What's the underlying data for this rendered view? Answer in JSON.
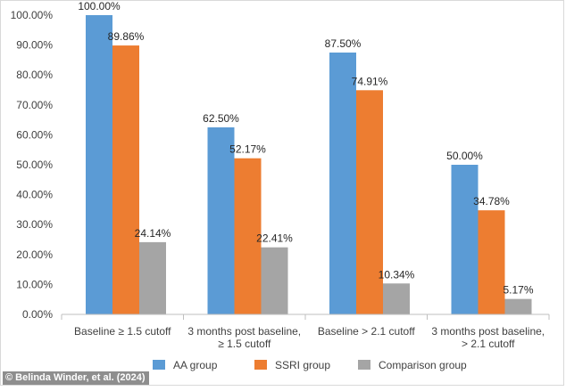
{
  "credit": "© Belinda Winder, et al. (2024)",
  "chart_data": {
    "type": "bar",
    "categories": [
      [
        "Baseline ≥ 1.5 cutoff"
      ],
      [
        "3 months post baseline,",
        "≥ 1.5 cutoff"
      ],
      [
        "Baseline > 2.1 cutoff"
      ],
      [
        "3 months post baseline,",
        "> 2.1 cutoff"
      ]
    ],
    "series": [
      {
        "name": "AA group",
        "color": "#5b9bd5",
        "values": [
          100.0,
          62.5,
          87.5,
          50.0
        ],
        "labels": [
          "100.00%",
          "62.50%",
          "87.50%",
          "50.00%"
        ]
      },
      {
        "name": "SSRI group",
        "color": "#ed7d31",
        "values": [
          89.86,
          52.17,
          74.91,
          34.78
        ],
        "labels": [
          "89.86%",
          "52.17%",
          "74.91%",
          "34.78%"
        ]
      },
      {
        "name": "Comparison group",
        "color": "#a5a5a5",
        "values": [
          24.14,
          22.41,
          10.34,
          5.17
        ],
        "labels": [
          "24.14%",
          "22.41%",
          "10.34%",
          "5.17%"
        ]
      }
    ],
    "yticks": [
      "0.00%",
      "10.00%",
      "20.00%",
      "30.00%",
      "40.00%",
      "50.00%",
      "60.00%",
      "70.00%",
      "80.00%",
      "90.00%",
      "100.00%"
    ],
    "ylim": [
      0,
      100
    ],
    "grid": false,
    "legend": "bottom"
  }
}
